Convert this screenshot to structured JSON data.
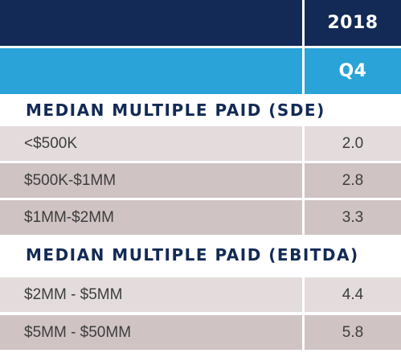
{
  "header": {
    "year": "2018",
    "quarter": "Q4"
  },
  "sections": [
    {
      "title": "MEDIAN MULTIPLE PAID (SDE)",
      "rows": [
        {
          "label": "<$500K",
          "value": "2.0"
        },
        {
          "label": "$500K-$1MM",
          "value": "2.8"
        },
        {
          "label": "$1MM-$2MM",
          "value": "3.3"
        }
      ]
    },
    {
      "title": "MEDIAN MULTIPLE PAID (EBITDA)",
      "rows": [
        {
          "label": "$2MM - $5MM",
          "value": "4.4"
        },
        {
          "label": "$5MM - $50MM",
          "value": "5.8"
        }
      ]
    }
  ],
  "colors": {
    "header_dark": "#122a55",
    "header_light": "#2aa3d8",
    "row_light": "#e4dcdc",
    "row_dark": "#cfc3c3",
    "section_text": "#122a55"
  }
}
